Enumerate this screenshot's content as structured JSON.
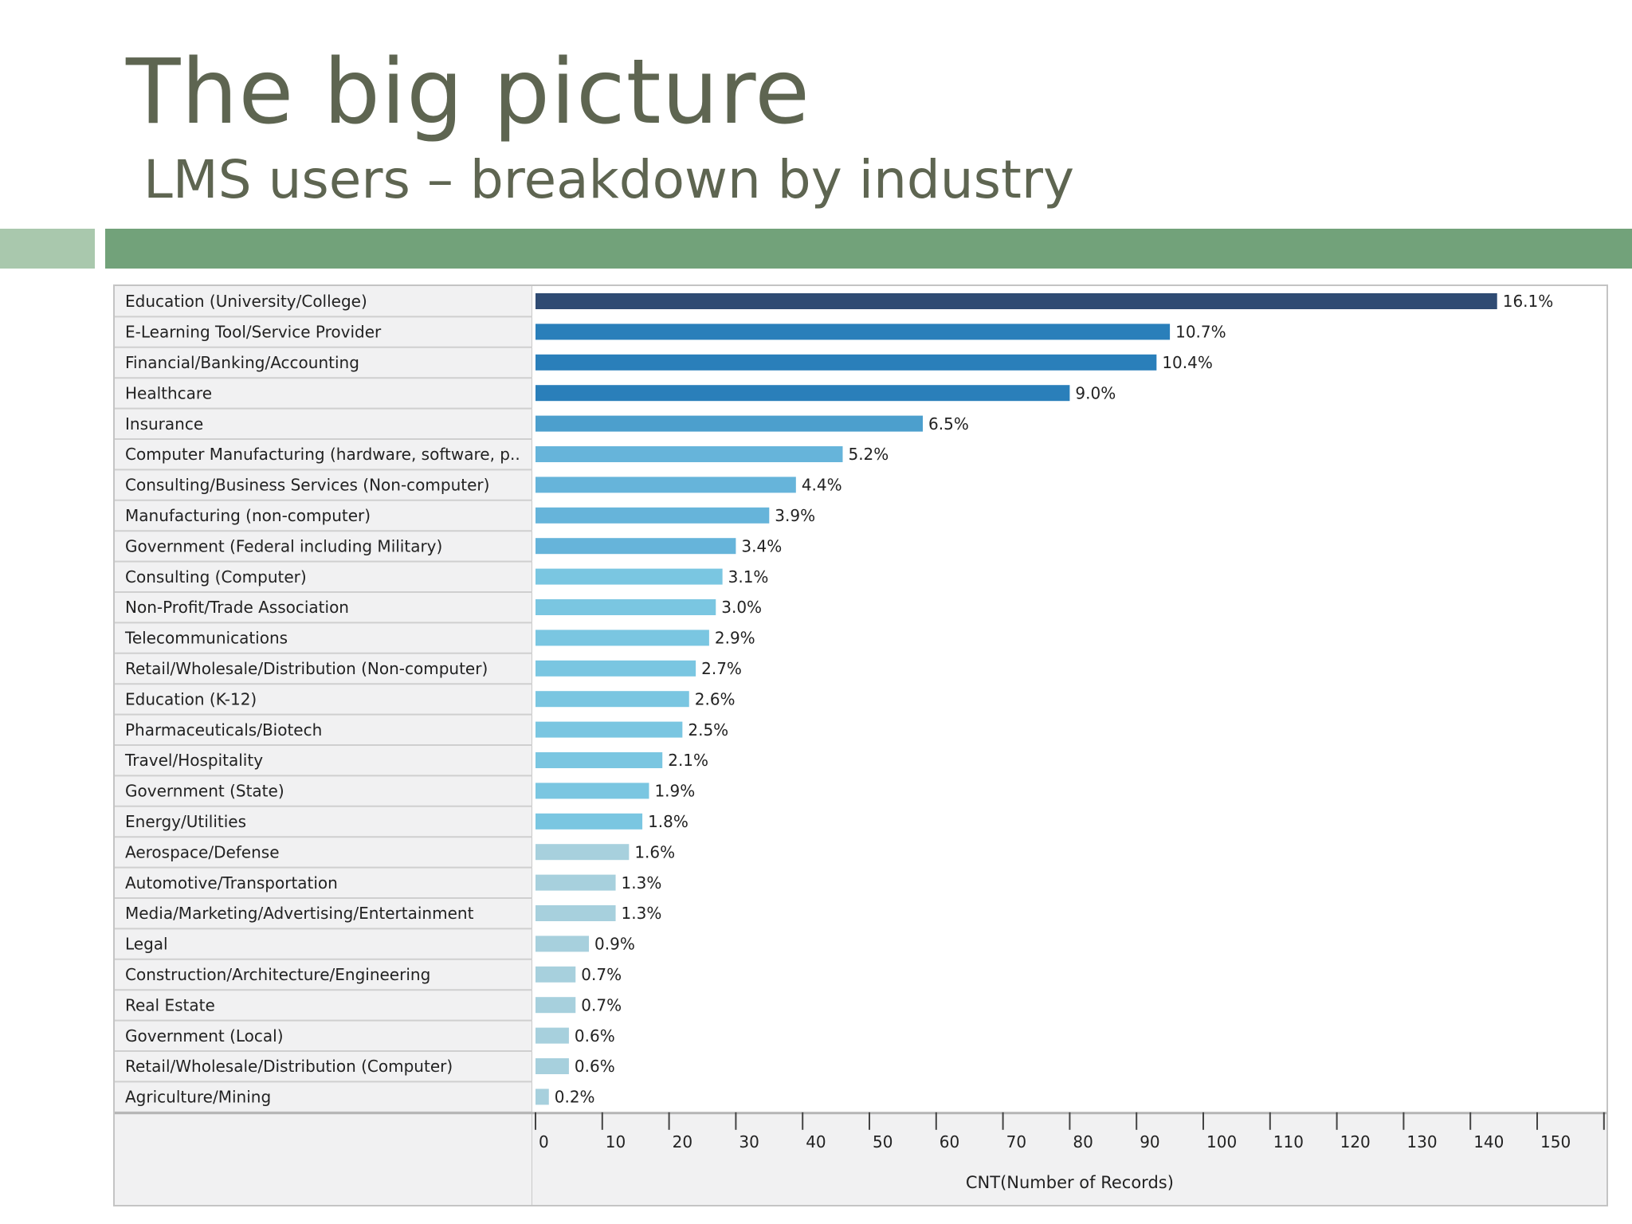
{
  "slide": {
    "title": "The big picture",
    "subtitle": "LMS users – breakdown by industry"
  },
  "colors": {
    "title_text": "#5e6551",
    "accent_light": "#a9c8ad",
    "accent_dark": "#72a27a",
    "bar_darkest": "#2f4b73",
    "bar_dark": "#2a7fba",
    "bar_mid": "#7ac6e1",
    "bar_light": "#a7d0dd"
  },
  "chart_data": {
    "type": "bar",
    "orientation": "horizontal",
    "categories": [
      "Education (University/College)",
      "E-Learning Tool/Service Provider",
      "Financial/Banking/Accounting",
      "Healthcare",
      "Insurance",
      "Computer Manufacturing (hardware, software, p..",
      "Consulting/Business Services (Non-computer)",
      "Manufacturing (non-computer)",
      "Government (Federal including Military)",
      "Consulting (Computer)",
      "Non-Profit/Trade Association",
      "Telecommunications",
      "Retail/Wholesale/Distribution (Non-computer)",
      "Education (K-12)",
      "Pharmaceuticals/Biotech",
      "Travel/Hospitality",
      "Government (State)",
      "Energy/Utilities",
      "Aerospace/Defense",
      "Automotive/Transportation",
      "Media/Marketing/Advertising/Entertainment",
      "Legal",
      "Construction/Architecture/Engineering",
      "Real Estate",
      "Government (Local)",
      "Retail/Wholesale/Distribution (Computer)",
      "Agriculture/Mining"
    ],
    "values": [
      144,
      95,
      93,
      80,
      58,
      46,
      39,
      35,
      30,
      28,
      27,
      26,
      24,
      23,
      22,
      19,
      17,
      16,
      14,
      12,
      12,
      8,
      6,
      6,
      5,
      5,
      2
    ],
    "data_labels": [
      "16.1%",
      "10.7%",
      "10.4%",
      "9.0%",
      "6.5%",
      "5.2%",
      "4.4%",
      "3.9%",
      "3.4%",
      "3.1%",
      "3.0%",
      "2.9%",
      "2.7%",
      "2.6%",
      "2.5%",
      "2.1%",
      "1.9%",
      "1.8%",
      "1.6%",
      "1.3%",
      "1.3%",
      "0.9%",
      "0.7%",
      "0.7%",
      "0.6%",
      "0.6%",
      "0.2%"
    ],
    "xlabel": "CNT(Number of Records)",
    "ylabel": "",
    "xlim": [
      0,
      160
    ],
    "xticks": [
      0,
      10,
      20,
      30,
      40,
      50,
      60,
      70,
      80,
      90,
      100,
      110,
      120,
      130,
      140,
      150,
      160
    ],
    "grid": false,
    "legend": "none"
  }
}
